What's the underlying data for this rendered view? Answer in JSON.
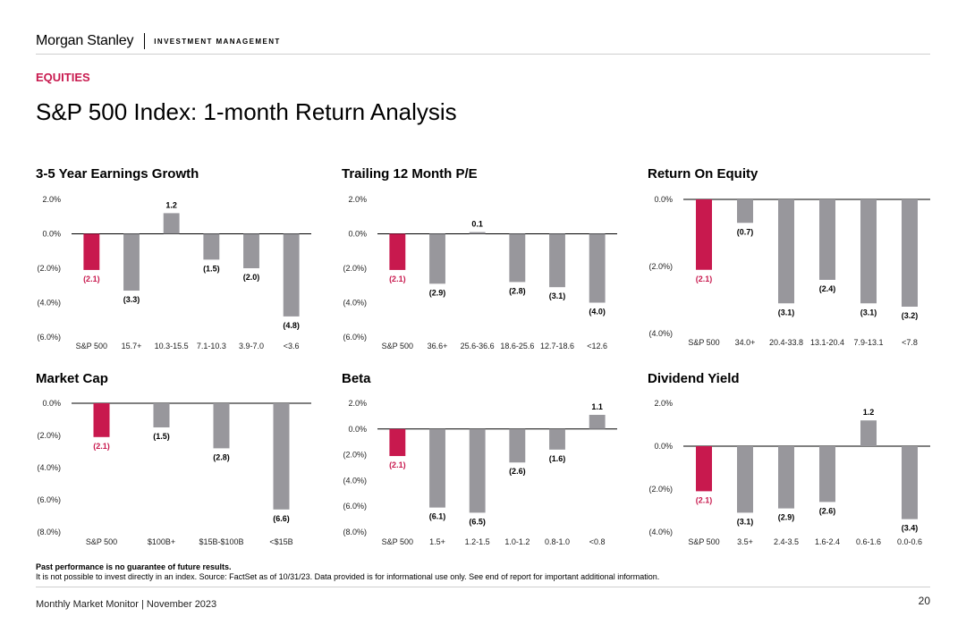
{
  "header": {
    "brand": "Morgan Stanley",
    "sub": "INVESTMENT MANAGEMENT"
  },
  "section_label": "EQUITIES",
  "title": "S&P 500 Index: 1-month Return Analysis",
  "colors": {
    "accent": "#c8194e",
    "bar": "#98979c",
    "axis": "#000000"
  },
  "chart_data": [
    {
      "type": "bar",
      "title": "3-5 Year Earnings Growth",
      "categories": [
        "S&P 500",
        "15.7+",
        "10.3-15.5",
        "7.1-10.3",
        "3.9-7.0",
        "<3.6"
      ],
      "values": [
        -2.1,
        -3.3,
        1.2,
        -1.5,
        -2.0,
        -4.8
      ],
      "labels": [
        "(2.1)",
        "(3.3)",
        "1.2",
        "(1.5)",
        "(2.0)",
        "(4.8)"
      ],
      "ylim": [
        -6,
        2
      ],
      "yticks": [
        2,
        0,
        -2,
        -4,
        -6
      ],
      "ytick_labels": [
        "2.0%",
        "0.0%",
        "(2.0%)",
        "(4.0%)",
        "(6.0%)"
      ]
    },
    {
      "type": "bar",
      "title": "Trailing 12 Month P/E",
      "categories": [
        "S&P 500",
        "36.6+",
        "25.6-36.6",
        "18.6-25.6",
        "12.7-18.6",
        "<12.6"
      ],
      "values": [
        -2.1,
        -2.9,
        0.1,
        -2.8,
        -3.1,
        -4.0
      ],
      "labels": [
        "(2.1)",
        "(2.9)",
        "0.1",
        "(2.8)",
        "(3.1)",
        "(4.0)"
      ],
      "ylim": [
        -6,
        2
      ],
      "yticks": [
        2,
        0,
        -2,
        -4,
        -6
      ],
      "ytick_labels": [
        "2.0%",
        "0.0%",
        "(2.0%)",
        "(4.0%)",
        "(6.0%)"
      ]
    },
    {
      "type": "bar",
      "title": "Return On Equity",
      "categories": [
        "S&P 500",
        "34.0+",
        "20.4-33.8",
        "13.1-20.4",
        "7.9-13.1",
        "<7.8"
      ],
      "values": [
        -2.1,
        -0.7,
        -3.1,
        -2.4,
        -3.1,
        -3.2
      ],
      "labels": [
        "(2.1)",
        "(0.7)",
        "(3.1)",
        "(2.4)",
        "(3.1)",
        "(3.2)"
      ],
      "ylim": [
        -4,
        0
      ],
      "yticks": [
        0,
        -2,
        -4
      ],
      "ytick_labels": [
        "0.0%",
        "(2.0%)",
        "(4.0%)"
      ]
    },
    {
      "type": "bar",
      "title": "Market Cap",
      "categories": [
        "S&P 500",
        "$100B+",
        "$15B-$100B",
        "<$15B"
      ],
      "values": [
        -2.1,
        -1.5,
        -2.8,
        -6.6
      ],
      "labels": [
        "(2.1)",
        "(1.5)",
        "(2.8)",
        "(6.6)"
      ],
      "ylim": [
        -8,
        0
      ],
      "yticks": [
        0,
        -2,
        -4,
        -6,
        -8
      ],
      "ytick_labels": [
        "0.0%",
        "(2.0%)",
        "(4.0%)",
        "(6.0%)",
        "(8.0%)"
      ]
    },
    {
      "type": "bar",
      "title": "Beta",
      "categories": [
        "S&P 500",
        "1.5+",
        "1.2-1.5",
        "1.0-1.2",
        "0.8-1.0",
        "<0.8"
      ],
      "values": [
        -2.1,
        -6.1,
        -6.5,
        -2.6,
        -1.6,
        1.1
      ],
      "labels": [
        "(2.1)",
        "(6.1)",
        "(6.5)",
        "(2.6)",
        "(1.6)",
        "1.1"
      ],
      "ylim": [
        -8,
        2
      ],
      "yticks": [
        2,
        0,
        -2,
        -4,
        -6,
        -8
      ],
      "ytick_labels": [
        "2.0%",
        "0.0%",
        "(2.0%)",
        "(4.0%)",
        "(6.0%)",
        "(8.0%)"
      ]
    },
    {
      "type": "bar",
      "title": "Dividend Yield",
      "categories": [
        "S&P 500",
        "3.5+",
        "2.4-3.5",
        "1.6-2.4",
        "0.6-1.6",
        "0.0-0.6"
      ],
      "values": [
        -2.1,
        -3.1,
        -2.9,
        -2.6,
        1.2,
        -3.4
      ],
      "labels": [
        "(2.1)",
        "(3.1)",
        "(2.9)",
        "(2.6)",
        "1.2",
        "(3.4)"
      ],
      "ylim": [
        -4,
        2
      ],
      "yticks": [
        2,
        0,
        -2,
        -4
      ],
      "ytick_labels": [
        "2.0%",
        "0.0%",
        "(2.0%)",
        "(4.0%)"
      ]
    }
  ],
  "footnote": {
    "bold": "Past performance is no guarantee of future results.",
    "text": "It is not possible to invest directly in an index. Source: FactSet as of 10/31/23. Data provided is for informational use only. See end of report for important additional information."
  },
  "footer": {
    "left": "Monthly Market Monitor | November 2023",
    "page": "20"
  }
}
